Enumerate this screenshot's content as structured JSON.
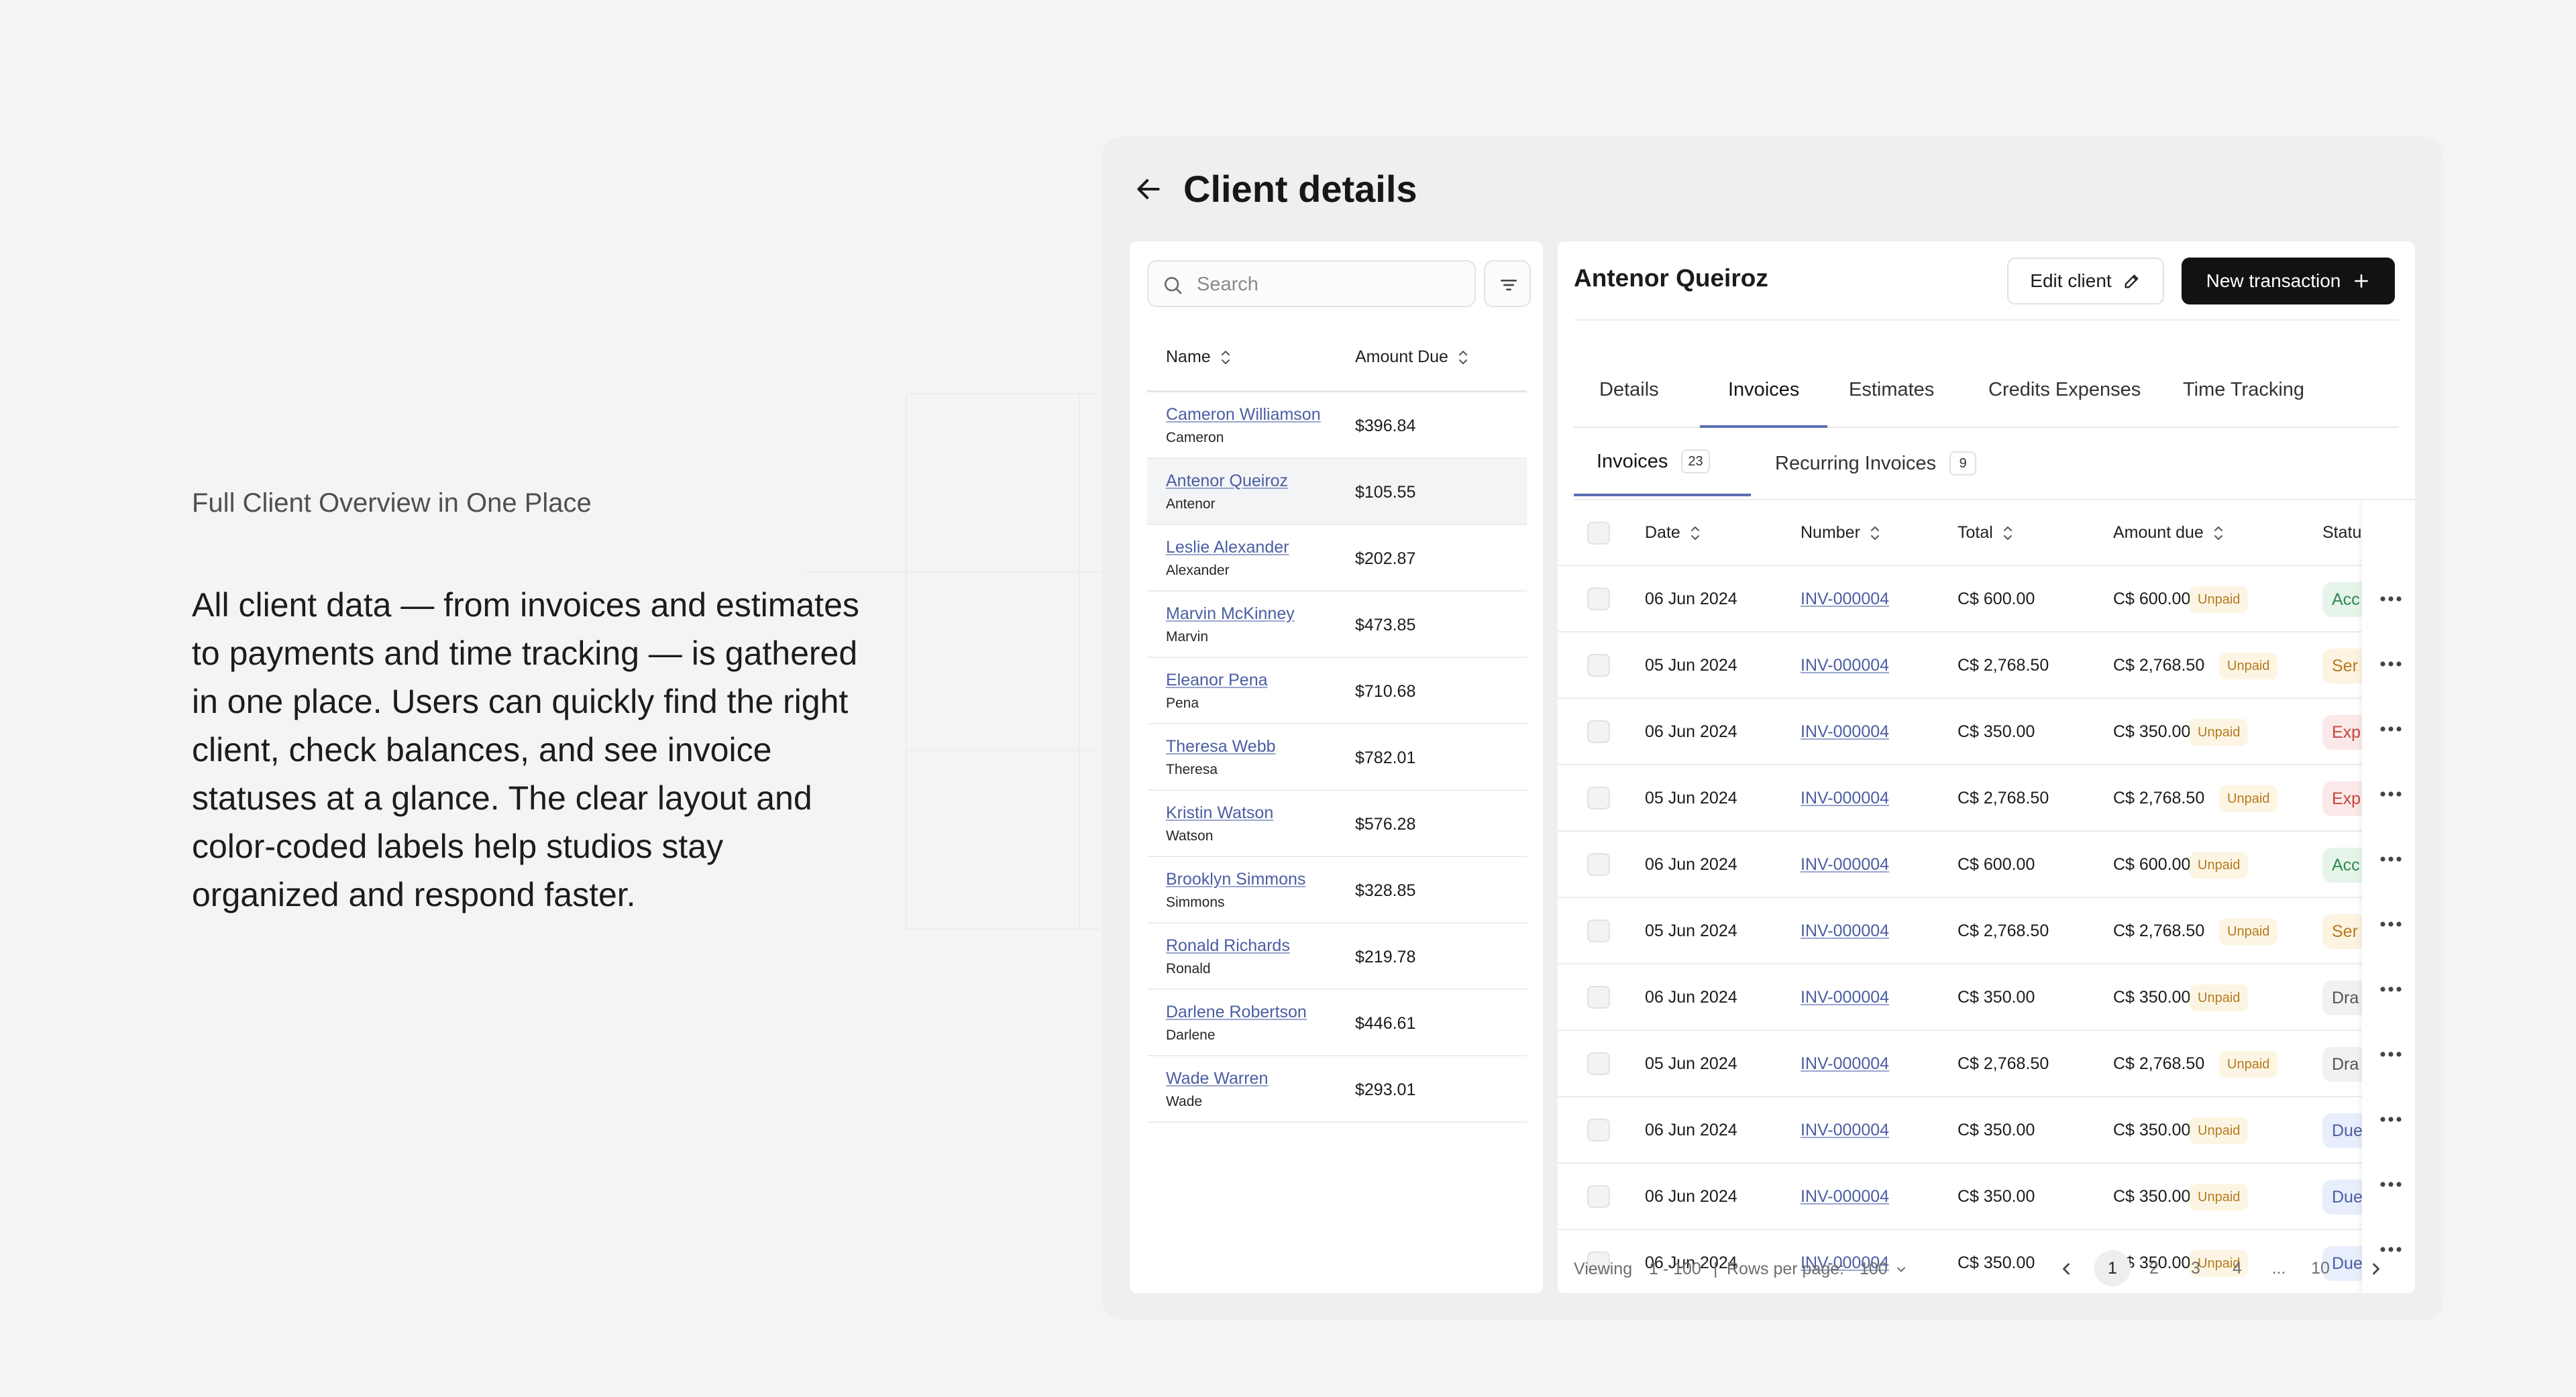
{
  "left_copy": {
    "kicker": "Full Client Overview in One Place",
    "paragraph": "All client data — from invoices and estimates to payments and time tracking — is gathered in one place. Users can quickly find the right client, check balances, and see invoice statuses at a glance. The clear layout and color-coded labels help studios stay organized and respond faster."
  },
  "page": {
    "title": "Client details",
    "back_icon": "arrow-left-icon"
  },
  "client_list": {
    "search_placeholder": "Search",
    "columns": {
      "name": "Name",
      "amount_due": "Amount Due"
    },
    "selected_index": 1,
    "rows": [
      {
        "name": "Cameron Williamson",
        "sub": "Cameron",
        "amount": "$396.84"
      },
      {
        "name": "Antenor Queiroz",
        "sub": "Antenor",
        "amount": "$105.55"
      },
      {
        "name": "Leslie Alexander",
        "sub": "Alexander",
        "amount": "$202.87"
      },
      {
        "name": "Marvin McKinney",
        "sub": "Marvin",
        "amount": "$473.85"
      },
      {
        "name": "Eleanor Pena",
        "sub": "Pena",
        "amount": "$710.68"
      },
      {
        "name": "Theresa Webb",
        "sub": "Theresa",
        "amount": "$782.01"
      },
      {
        "name": "Kristin Watson",
        "sub": "Watson",
        "amount": "$576.28"
      },
      {
        "name": "Brooklyn Simmons",
        "sub": "Simmons",
        "amount": "$328.85"
      },
      {
        "name": "Ronald Richards",
        "sub": "Ronald",
        "amount": "$219.78"
      },
      {
        "name": "Darlene Robertson",
        "sub": "Darlene",
        "amount": "$446.61"
      },
      {
        "name": "Wade Warren",
        "sub": "Wade",
        "amount": "$293.01"
      }
    ]
  },
  "detail": {
    "client_name": "Antenor Queiroz",
    "edit_label": "Edit client",
    "new_label": "New transaction",
    "tabs": [
      "Details",
      "Invoices",
      "Estimates",
      "Credits Expenses",
      "Time Tracking"
    ],
    "active_tab": 1,
    "subtabs": [
      {
        "label": "Invoices",
        "count": "23"
      },
      {
        "label": "Recurring Invoices",
        "count": "9"
      }
    ],
    "active_subtab": 0,
    "columns": {
      "date": "Date",
      "number": "Number",
      "total": "Total",
      "amount_due": "Amount due",
      "status": "Statu"
    },
    "rows": [
      {
        "date": "06 Jun 2024",
        "number": "INV-000004",
        "total": "C$ 600.00",
        "due": "C$ 600.00",
        "badge": "Unpaid",
        "status": "Acc",
        "tone": "green"
      },
      {
        "date": "05 Jun 2024",
        "number": "INV-000004",
        "total": "C$ 2,768.50",
        "due": "C$ 2,768.50",
        "badge": "Unpaid",
        "status": "Ser",
        "tone": "amber"
      },
      {
        "date": "06 Jun 2024",
        "number": "INV-000004",
        "total": "C$ 350.00",
        "due": "C$ 350.00",
        "badge": "Unpaid",
        "status": "Exp",
        "tone": "red"
      },
      {
        "date": "05 Jun 2024",
        "number": "INV-000004",
        "total": "C$ 2,768.50",
        "due": "C$ 2,768.50",
        "badge": "Unpaid",
        "status": "Exp",
        "tone": "red"
      },
      {
        "date": "06 Jun 2024",
        "number": "INV-000004",
        "total": "C$ 600.00",
        "due": "C$ 600.00",
        "badge": "Unpaid",
        "status": "Acc",
        "tone": "green"
      },
      {
        "date": "05 Jun 2024",
        "number": "INV-000004",
        "total": "C$ 2,768.50",
        "due": "C$ 2,768.50",
        "badge": "Unpaid",
        "status": "Ser",
        "tone": "amber"
      },
      {
        "date": "06 Jun 2024",
        "number": "INV-000004",
        "total": "C$ 350.00",
        "due": "C$ 350.00",
        "badge": "Unpaid",
        "status": "Dra",
        "tone": "gray"
      },
      {
        "date": "05 Jun 2024",
        "number": "INV-000004",
        "total": "C$ 2,768.50",
        "due": "C$ 2,768.50",
        "badge": "Unpaid",
        "status": "Dra",
        "tone": "gray"
      },
      {
        "date": "06 Jun 2024",
        "number": "INV-000004",
        "total": "C$ 350.00",
        "due": "C$ 350.00",
        "badge": "Unpaid",
        "status": "Due",
        "tone": "blue"
      },
      {
        "date": "06 Jun 2024",
        "number": "INV-000004",
        "total": "C$ 350.00",
        "due": "C$ 350.00",
        "badge": "Unpaid",
        "status": "Due",
        "tone": "blue"
      },
      {
        "date": "06 Jun 2024",
        "number": "INV-000004",
        "total": "C$ 350.00",
        "due": "C$ 350.00",
        "badge": "Unpaid",
        "status": "Due",
        "tone": "blue"
      }
    ],
    "footer": {
      "viewing_label": "Viewing",
      "viewing_range": "1 - 100",
      "separator": "|",
      "rows_label": "Rows per page:",
      "rows_value": "100",
      "pages": [
        "1",
        "2",
        "3",
        "4",
        "...",
        "10"
      ],
      "current_page": "1"
    }
  },
  "colors": {
    "accent": "#5b6fb3",
    "link": "#4b5ea3",
    "primary_button": "#121212",
    "unpaid_bg": "#fcf5e3",
    "unpaid_text": "#b7791f"
  }
}
